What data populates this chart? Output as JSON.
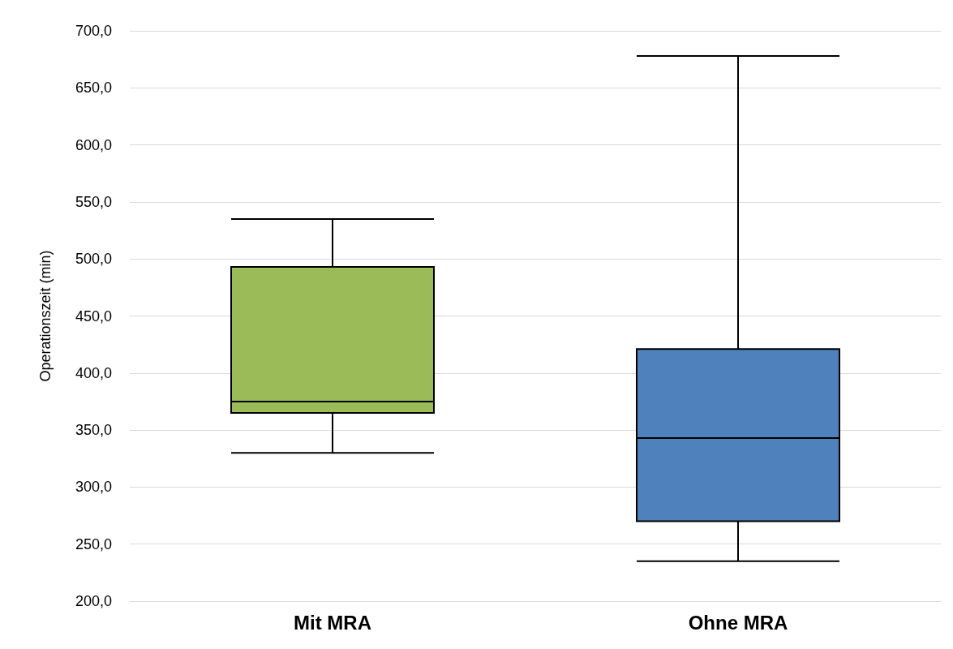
{
  "chart_data": {
    "type": "box",
    "ylabel": "Operationszeit (min)",
    "categories": [
      "Mit MRA",
      "Ohne MRA"
    ],
    "colors": [
      "#9bbb59",
      "#4f81bd"
    ],
    "boxes": [
      {
        "low": 330,
        "q1": 365,
        "median": 375,
        "q3": 493,
        "high": 535
      },
      {
        "low": 235,
        "q1": 270,
        "median": 343,
        "q3": 421,
        "high": 678
      }
    ],
    "ylim": [
      200,
      700
    ],
    "yticks": [
      {
        "value": 200,
        "label": "200,0"
      },
      {
        "value": 250,
        "label": "250,0"
      },
      {
        "value": 300,
        "label": "300,0"
      },
      {
        "value": 350,
        "label": "350,0"
      },
      {
        "value": 400,
        "label": "400,0"
      },
      {
        "value": 450,
        "label": "450,0"
      },
      {
        "value": 500,
        "label": "500,0"
      },
      {
        "value": 550,
        "label": "550,0"
      },
      {
        "value": 600,
        "label": "600,0"
      },
      {
        "value": 650,
        "label": "650,0"
      },
      {
        "value": 700,
        "label": "700,0"
      }
    ],
    "grid": "y"
  }
}
